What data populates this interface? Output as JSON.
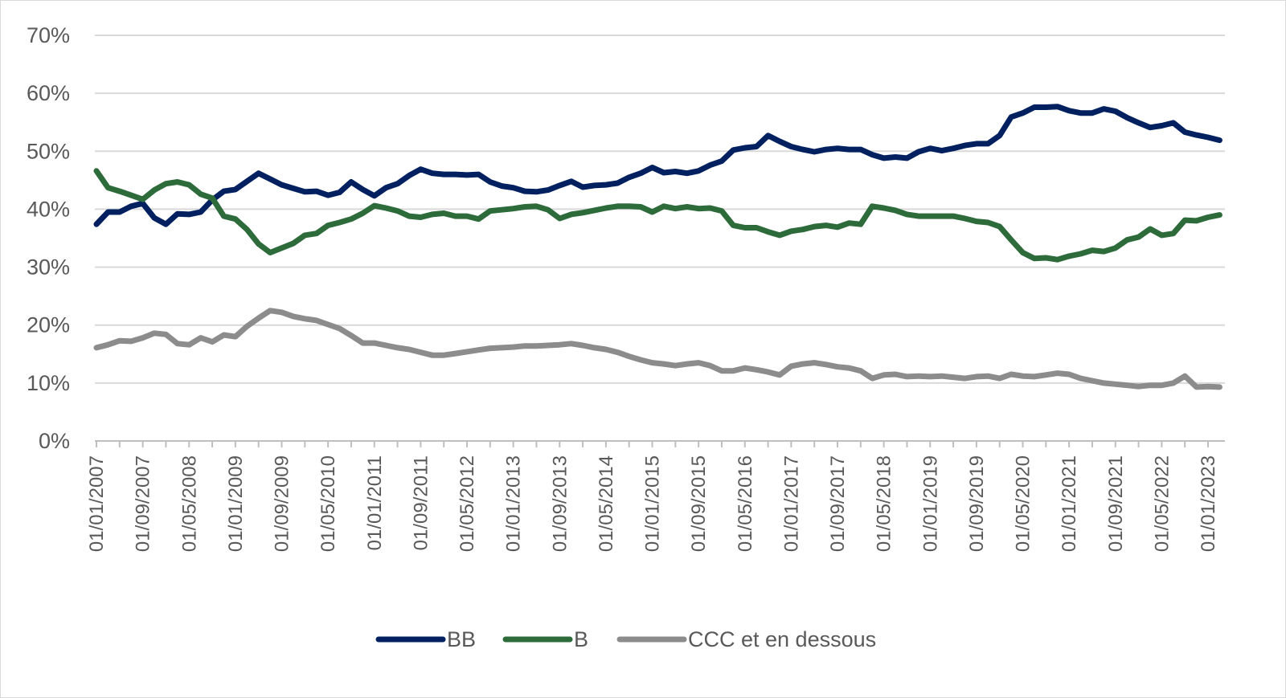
{
  "chart_data": {
    "type": "line",
    "title": "",
    "xlabel": "",
    "ylabel": "",
    "ylim": [
      0,
      70
    ],
    "y_ticks": [
      "0%",
      "10%",
      "20%",
      "30%",
      "40%",
      "50%",
      "60%",
      "70%"
    ],
    "x_tick_labels": [
      "01/01/2007",
      "01/05/2007",
      "01/09/2007",
      "01/01/2008",
      "01/05/2008",
      "01/09/2008",
      "01/01/2009",
      "01/05/2009",
      "01/09/2009",
      "01/01/2010",
      "01/05/2010",
      "01/09/2010",
      "01/01/2011",
      "01/05/2011",
      "01/09/2011",
      "01/01/2012",
      "01/05/2012",
      "01/09/2012",
      "01/01/2013",
      "01/05/2013",
      "01/09/2013",
      "01/01/2014",
      "01/05/2014",
      "01/09/2014",
      "01/01/2015",
      "01/05/2015",
      "01/09/2015",
      "01/01/2016",
      "01/05/2016",
      "01/09/2016",
      "01/01/2017",
      "01/05/2017",
      "01/09/2017",
      "01/01/2018",
      "01/05/2018",
      "01/09/2018",
      "01/01/2019",
      "01/05/2019",
      "01/09/2019",
      "01/01/2020",
      "01/05/2020",
      "01/09/2020",
      "01/01/2021",
      "01/05/2021",
      "01/09/2021",
      "01/01/2022",
      "01/05/2022",
      "01/09/2022",
      "01/01/2023"
    ],
    "x_tick_labels_shown": [
      "01/01/2007",
      "01/09/2007",
      "01/05/2008",
      "01/01/2009",
      "01/09/2009",
      "01/05/2010",
      "01/01/2011",
      "01/09/2011",
      "01/05/2012",
      "01/01/2013",
      "01/09/2013",
      "01/05/2014",
      "01/01/2015",
      "01/09/2015",
      "01/05/2016",
      "01/01/2017",
      "01/09/2017",
      "01/05/2018",
      "01/01/2019",
      "01/09/2019",
      "01/05/2020",
      "01/01/2021",
      "01/09/2021",
      "01/05/2022",
      "01/01/2023"
    ],
    "grid": true,
    "legend": "bottom",
    "x": [
      "01/01/2007",
      "01/03/2007",
      "01/05/2007",
      "01/07/2007",
      "01/09/2007",
      "01/11/2007",
      "01/01/2008",
      "01/03/2008",
      "01/05/2008",
      "01/07/2008",
      "01/09/2008",
      "01/11/2008",
      "01/01/2009",
      "01/03/2009",
      "01/05/2009",
      "01/07/2009",
      "01/09/2009",
      "01/11/2009",
      "01/01/2010",
      "01/03/2010",
      "01/05/2010",
      "01/07/2010",
      "01/09/2010",
      "01/11/2010",
      "01/01/2011",
      "01/03/2011",
      "01/05/2011",
      "01/07/2011",
      "01/09/2011",
      "01/11/2011",
      "01/01/2012",
      "01/03/2012",
      "01/05/2012",
      "01/07/2012",
      "01/09/2012",
      "01/11/2012",
      "01/01/2013",
      "01/03/2013",
      "01/05/2013",
      "01/07/2013",
      "01/09/2013",
      "01/11/2013",
      "01/01/2014",
      "01/03/2014",
      "01/05/2014",
      "01/07/2014",
      "01/09/2014",
      "01/11/2014",
      "01/01/2015",
      "01/03/2015",
      "01/05/2015",
      "01/07/2015",
      "01/09/2015",
      "01/11/2015",
      "01/01/2016",
      "01/03/2016",
      "01/05/2016",
      "01/07/2016",
      "01/09/2016",
      "01/11/2016",
      "01/01/2017",
      "01/03/2017",
      "01/05/2017",
      "01/07/2017",
      "01/09/2017",
      "01/11/2017",
      "01/01/2018",
      "01/03/2018",
      "01/05/2018",
      "01/07/2018",
      "01/09/2018",
      "01/11/2018",
      "01/01/2019",
      "01/03/2019",
      "01/05/2019",
      "01/07/2019",
      "01/09/2019",
      "01/11/2019",
      "01/01/2020",
      "01/03/2020",
      "01/05/2020",
      "01/07/2020",
      "01/09/2020",
      "01/11/2020",
      "01/01/2021",
      "01/03/2021",
      "01/05/2021",
      "01/07/2021",
      "01/09/2021",
      "01/11/2021",
      "01/01/2022",
      "01/03/2022",
      "01/05/2022",
      "01/07/2022",
      "01/09/2022",
      "01/11/2022",
      "01/01/2023",
      "01/03/2023"
    ],
    "series": [
      {
        "name": "BB",
        "color": "#002060",
        "values": [
          37.4,
          39.5,
          39.5,
          40.5,
          41,
          38.5,
          37.4,
          39.2,
          39.1,
          39.5,
          41.6,
          43.1,
          43.4,
          44.8,
          46.2,
          45.2,
          44.2,
          43.6,
          43,
          43.1,
          42.4,
          42.9,
          44.7,
          43.4,
          42.3,
          43.7,
          44.4,
          45.8,
          46.9,
          46.2,
          46,
          46,
          45.9,
          46,
          44.7,
          44,
          43.7,
          43.1,
          43,
          43.3,
          44.1,
          44.8,
          43.8,
          44.1,
          44.2,
          44.5,
          45.5,
          46.2,
          47.2,
          46.3,
          46.5,
          46.2,
          46.6,
          47.6,
          48.3,
          50.2,
          50.6,
          50.8,
          52.7,
          51.7,
          50.8,
          50.3,
          49.9,
          50.3,
          50.5,
          50.3,
          50.3,
          49.4,
          48.8,
          49,
          48.8,
          49.9,
          50.5,
          50.1,
          50.5,
          51,
          51.3,
          51.3,
          52.7,
          55.9,
          56.6,
          57.6,
          57.6,
          57.7,
          57,
          56.6,
          56.6,
          57.3,
          56.9,
          55.8,
          54.9,
          54.1,
          54.4,
          54.9,
          53.3,
          52.8,
          52.4,
          51.9
        ]
      },
      {
        "name": "B",
        "color": "#2E6B3B",
        "values": [
          46.6,
          43.7,
          43.1,
          42.4,
          41.7,
          43.3,
          44.4,
          44.7,
          44.2,
          42.6,
          41.9,
          38.8,
          38.3,
          36.5,
          34,
          32.5,
          33.3,
          34.1,
          35.5,
          35.8,
          37.2,
          37.7,
          38.3,
          39.3,
          40.6,
          40.2,
          39.7,
          38.8,
          38.6,
          39.1,
          39.3,
          38.8,
          38.8,
          38.3,
          39.7,
          39.9,
          40.1,
          40.4,
          40.5,
          39.9,
          38.4,
          39.1,
          39.4,
          39.8,
          40.2,
          40.5,
          40.5,
          40.4,
          39.5,
          40.5,
          40.1,
          40.4,
          40.1,
          40.2,
          39.7,
          37.2,
          36.8,
          36.8,
          36.1,
          35.5,
          36.2,
          36.5,
          37,
          37.2,
          36.9,
          37.6,
          37.4,
          40.5,
          40.2,
          39.8,
          39.1,
          38.8,
          38.8,
          38.8,
          38.8,
          38.4,
          37.9,
          37.7,
          37,
          34.7,
          32.5,
          31.5,
          31.6,
          31.3,
          31.9,
          32.3,
          32.9,
          32.7,
          33.3,
          34.7,
          35.2,
          36.6,
          35.5,
          35.8,
          38.1,
          38,
          38.6,
          39
        ]
      },
      {
        "name": "CCC et en dessous",
        "color": "#8C8C8C",
        "values": [
          16.1,
          16.6,
          17.3,
          17.2,
          17.8,
          18.6,
          18.4,
          16.8,
          16.6,
          17.8,
          17.1,
          18.3,
          18,
          19.8,
          21.2,
          22.5,
          22.2,
          21.5,
          21.1,
          20.8,
          20.1,
          19.4,
          18.2,
          16.9,
          16.9,
          16.5,
          16.1,
          15.8,
          15.3,
          14.8,
          14.8,
          15.1,
          15.4,
          15.7,
          16,
          16.1,
          16.2,
          16.4,
          16.4,
          16.5,
          16.6,
          16.8,
          16.5,
          16.1,
          15.8,
          15.3,
          14.6,
          14,
          13.5,
          13.3,
          13,
          13.3,
          13.5,
          13,
          12.1,
          12.1,
          12.6,
          12.3,
          11.9,
          11.4,
          12.9,
          13.3,
          13.5,
          13.2,
          12.8,
          12.6,
          12.1,
          10.8,
          11.4,
          11.5,
          11.1,
          11.2,
          11.1,
          11.2,
          11,
          10.8,
          11.1,
          11.2,
          10.8,
          11.5,
          11.2,
          11.1,
          11.4,
          11.7,
          11.5,
          10.8,
          10.4,
          10,
          9.8,
          9.6,
          9.4,
          9.6,
          9.6,
          10,
          11.2,
          9.3,
          9.4,
          9.3
        ]
      }
    ]
  }
}
